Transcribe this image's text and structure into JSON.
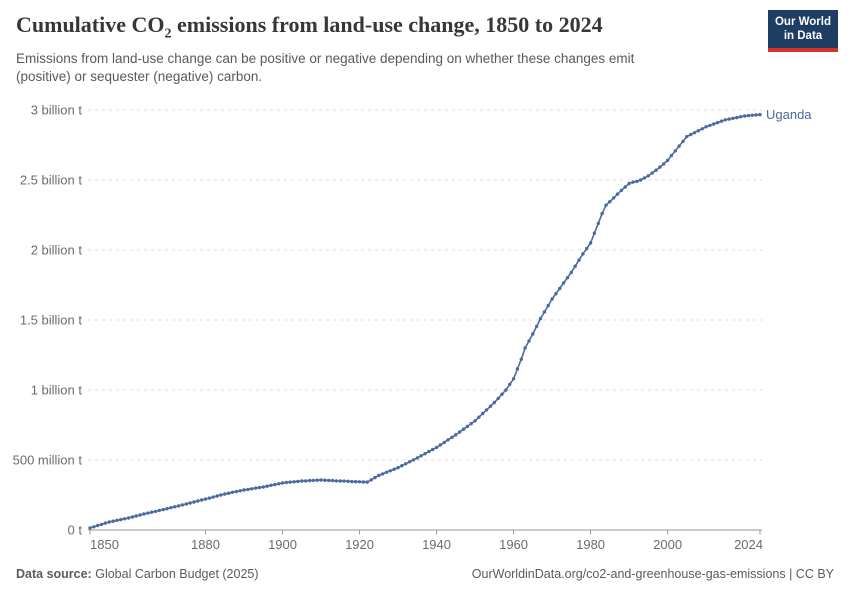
{
  "header": {
    "title_prefix": "Cumulative CO",
    "title_sub": "2",
    "title_suffix": " emissions from land-use change, 1850 to 2024",
    "subtitle": "Emissions from land-use change can be positive or negative depending on whether these changes emit (positive) or sequester (negative) carbon."
  },
  "logo": {
    "line1": "Our World",
    "line2": "in Data",
    "bg_color": "#1d3d63",
    "bar_color": "#d1342c"
  },
  "footer": {
    "source_label": "Data source:",
    "source_value": "Global Carbon Budget (2025)",
    "credit": "OurWorldinData.org/co2-and-greenhouse-gas-emissions | CC BY"
  },
  "chart_data": {
    "type": "line",
    "title": "Cumulative CO₂ emissions from land-use change, 1850 to 2024",
    "entity": "Uganda",
    "unit": "tonnes of CO₂",
    "value_scale": "billion tonnes",
    "xlabel": "",
    "ylabel": "",
    "xlim": [
      1850,
      2024
    ],
    "ylim": [
      0,
      3
    ],
    "grid": "dashed horizontal",
    "legend_position": "end-of-line label",
    "line_color": "#4c69a1",
    "grid_color": "#dcdcdc",
    "axis_color": "#979797",
    "xticks": [
      1850,
      1880,
      1900,
      1920,
      1940,
      1960,
      1980,
      2000,
      2024
    ],
    "yticks": [
      {
        "value": 0,
        "label": "0 t"
      },
      {
        "value": 0.5,
        "label": "500 million t"
      },
      {
        "value": 1,
        "label": "1 billion t"
      },
      {
        "value": 1.5,
        "label": "1.5 billion t"
      },
      {
        "value": 2,
        "label": "2 billion t"
      },
      {
        "value": 2.5,
        "label": "2.5 billion t"
      },
      {
        "value": 3,
        "label": "3 billion t"
      }
    ],
    "series": [
      {
        "name": "Uganda",
        "points": [
          [
            1850,
            0.015
          ],
          [
            1851,
            0.023
          ],
          [
            1852,
            0.032
          ],
          [
            1853,
            0.04
          ],
          [
            1854,
            0.049
          ],
          [
            1855,
            0.057
          ],
          [
            1856,
            0.063
          ],
          [
            1857,
            0.069
          ],
          [
            1858,
            0.074
          ],
          [
            1859,
            0.08
          ],
          [
            1860,
            0.086
          ],
          [
            1861,
            0.093
          ],
          [
            1862,
            0.1
          ],
          [
            1863,
            0.107
          ],
          [
            1864,
            0.114
          ],
          [
            1865,
            0.121
          ],
          [
            1866,
            0.127
          ],
          [
            1867,
            0.133
          ],
          [
            1868,
            0.14
          ],
          [
            1869,
            0.146
          ],
          [
            1870,
            0.152
          ],
          [
            1871,
            0.159
          ],
          [
            1872,
            0.166
          ],
          [
            1873,
            0.172
          ],
          [
            1874,
            0.179
          ],
          [
            1875,
            0.186
          ],
          [
            1876,
            0.193
          ],
          [
            1877,
            0.2
          ],
          [
            1878,
            0.207
          ],
          [
            1879,
            0.214
          ],
          [
            1880,
            0.221
          ],
          [
            1881,
            0.228
          ],
          [
            1882,
            0.235
          ],
          [
            1883,
            0.243
          ],
          [
            1884,
            0.25
          ],
          [
            1885,
            0.257
          ],
          [
            1886,
            0.263
          ],
          [
            1887,
            0.269
          ],
          [
            1888,
            0.274
          ],
          [
            1889,
            0.28
          ],
          [
            1890,
            0.286
          ],
          [
            1891,
            0.29
          ],
          [
            1892,
            0.294
          ],
          [
            1893,
            0.299
          ],
          [
            1894,
            0.303
          ],
          [
            1895,
            0.307
          ],
          [
            1896,
            0.313
          ],
          [
            1897,
            0.319
          ],
          [
            1898,
            0.324
          ],
          [
            1899,
            0.33
          ],
          [
            1900,
            0.336
          ],
          [
            1901,
            0.339
          ],
          [
            1902,
            0.342
          ],
          [
            1903,
            0.344
          ],
          [
            1904,
            0.347
          ],
          [
            1905,
            0.35
          ],
          [
            1906,
            0.351
          ],
          [
            1907,
            0.353
          ],
          [
            1908,
            0.354
          ],
          [
            1909,
            0.356
          ],
          [
            1910,
            0.357
          ],
          [
            1911,
            0.356
          ],
          [
            1912,
            0.354
          ],
          [
            1913,
            0.353
          ],
          [
            1914,
            0.351
          ],
          [
            1915,
            0.35
          ],
          [
            1916,
            0.349
          ],
          [
            1917,
            0.348
          ],
          [
            1918,
            0.346
          ],
          [
            1919,
            0.345
          ],
          [
            1920,
            0.344
          ],
          [
            1921,
            0.343
          ],
          [
            1922,
            0.342
          ],
          [
            1923,
            0.358
          ],
          [
            1924,
            0.374
          ],
          [
            1925,
            0.39
          ],
          [
            1926,
            0.401
          ],
          [
            1927,
            0.412
          ],
          [
            1928,
            0.423
          ],
          [
            1929,
            0.434
          ],
          [
            1930,
            0.445
          ],
          [
            1931,
            0.459
          ],
          [
            1932,
            0.473
          ],
          [
            1933,
            0.487
          ],
          [
            1934,
            0.501
          ],
          [
            1935,
            0.515
          ],
          [
            1936,
            0.53
          ],
          [
            1937,
            0.545
          ],
          [
            1938,
            0.56
          ],
          [
            1939,
            0.575
          ],
          [
            1940,
            0.59
          ],
          [
            1941,
            0.608
          ],
          [
            1942,
            0.626
          ],
          [
            1943,
            0.644
          ],
          [
            1944,
            0.662
          ],
          [
            1945,
            0.68
          ],
          [
            1946,
            0.7
          ],
          [
            1947,
            0.72
          ],
          [
            1948,
            0.74
          ],
          [
            1949,
            0.76
          ],
          [
            1950,
            0.78
          ],
          [
            1951,
            0.806
          ],
          [
            1952,
            0.832
          ],
          [
            1953,
            0.858
          ],
          [
            1954,
            0.884
          ],
          [
            1955,
            0.91
          ],
          [
            1956,
            0.94
          ],
          [
            1957,
            0.97
          ],
          [
            1958,
            1.0
          ],
          [
            1959,
            1.04
          ],
          [
            1960,
            1.08
          ],
          [
            1961,
            1.15
          ],
          [
            1962,
            1.22
          ],
          [
            1963,
            1.3
          ],
          [
            1964,
            1.35
          ],
          [
            1965,
            1.4
          ],
          [
            1966,
            1.455
          ],
          [
            1967,
            1.51
          ],
          [
            1968,
            1.557
          ],
          [
            1969,
            1.603
          ],
          [
            1970,
            1.65
          ],
          [
            1971,
            1.688
          ],
          [
            1972,
            1.726
          ],
          [
            1973,
            1.764
          ],
          [
            1974,
            1.802
          ],
          [
            1975,
            1.84
          ],
          [
            1976,
            1.884
          ],
          [
            1977,
            1.928
          ],
          [
            1978,
            1.972
          ],
          [
            1979,
            2.01
          ],
          [
            1980,
            2.05
          ],
          [
            1981,
            2.12
          ],
          [
            1982,
            2.19
          ],
          [
            1983,
            2.26
          ],
          [
            1984,
            2.32
          ],
          [
            1985,
            2.345
          ],
          [
            1986,
            2.372
          ],
          [
            1987,
            2.399
          ],
          [
            1988,
            2.426
          ],
          [
            1989,
            2.45
          ],
          [
            1990,
            2.475
          ],
          [
            1991,
            2.485
          ],
          [
            1992,
            2.49
          ],
          [
            1993,
            2.5
          ],
          [
            1994,
            2.515
          ],
          [
            1995,
            2.53
          ],
          [
            1996,
            2.55
          ],
          [
            1997,
            2.57
          ],
          [
            1998,
            2.592
          ],
          [
            1999,
            2.615
          ],
          [
            2000,
            2.64
          ],
          [
            2001,
            2.674
          ],
          [
            2002,
            2.708
          ],
          [
            2003,
            2.742
          ],
          [
            2004,
            2.776
          ],
          [
            2005,
            2.81
          ],
          [
            2006,
            2.824
          ],
          [
            2007,
            2.838
          ],
          [
            2008,
            2.852
          ],
          [
            2009,
            2.866
          ],
          [
            2010,
            2.88
          ],
          [
            2011,
            2.89
          ],
          [
            2012,
            2.9
          ],
          [
            2013,
            2.91
          ],
          [
            2014,
            2.92
          ],
          [
            2015,
            2.93
          ],
          [
            2016,
            2.935
          ],
          [
            2017,
            2.941
          ],
          [
            2018,
            2.946
          ],
          [
            2019,
            2.952
          ],
          [
            2020,
            2.957
          ],
          [
            2021,
            2.96
          ],
          [
            2022,
            2.962
          ],
          [
            2023,
            2.965
          ],
          [
            2024,
            2.967
          ]
        ]
      }
    ]
  }
}
